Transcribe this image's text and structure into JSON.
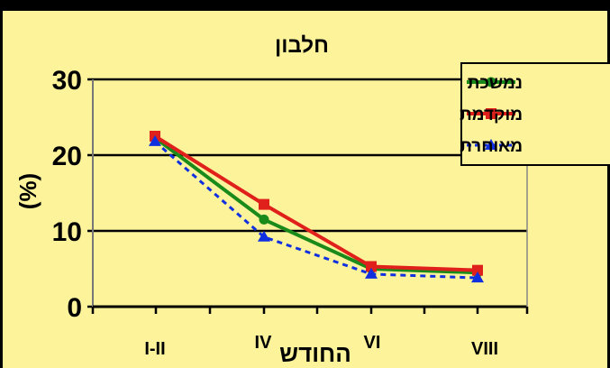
{
  "chart_data": {
    "type": "line",
    "title": "חלבון",
    "xlabel": "החודש",
    "ylabel": "(%)",
    "categories": [
      "I-II",
      "IV",
      "VI",
      "VIII"
    ],
    "ylim": [
      0,
      30
    ],
    "yticks": [
      "0",
      "10",
      "20",
      "30"
    ],
    "grid": true,
    "legend_position": "top-right",
    "series": [
      {
        "name": "נמשכת",
        "values": [
          22.3,
          11.5,
          5.0,
          4.5
        ],
        "color": "#1a8a1a",
        "marker": "circle",
        "dash": "solid"
      },
      {
        "name": "מוקדמת",
        "values": [
          22.5,
          13.5,
          5.3,
          4.8
        ],
        "color": "#e0201a",
        "marker": "square",
        "dash": "solid"
      },
      {
        "name": "מאוחרת",
        "values": [
          21.8,
          9.2,
          4.3,
          3.8
        ],
        "color": "#1030e0",
        "marker": "triangle",
        "dash": "dashed"
      }
    ]
  }
}
